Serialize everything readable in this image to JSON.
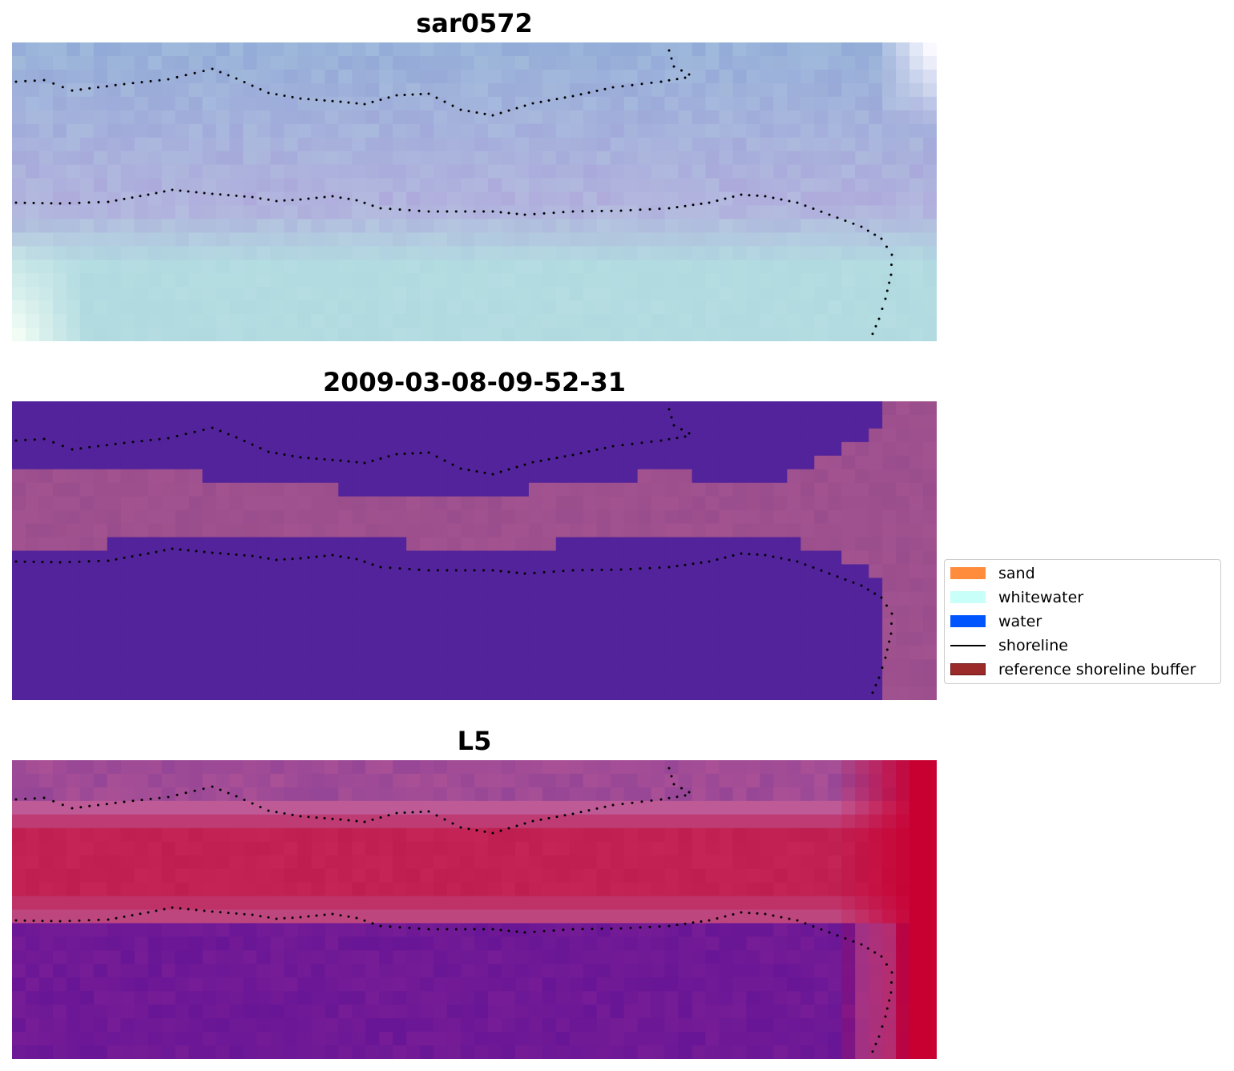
{
  "chart_data": {
    "type": "heatmap",
    "panels": [
      {
        "title": "sar0572",
        "colormap": "rgb-composite"
      },
      {
        "title": "2009-03-08-09-52-31",
        "colormap": "classification"
      },
      {
        "title": "L5",
        "colormap": "index"
      }
    ],
    "legend": {
      "placement": "center-right",
      "items": [
        {
          "label": "sand",
          "kind": "patch",
          "color": "#ff8c3c"
        },
        {
          "label": "whitewater",
          "kind": "patch",
          "color": "#c8fff8"
        },
        {
          "label": "water",
          "kind": "patch",
          "color": "#0055ff"
        },
        {
          "label": "shoreline",
          "kind": "line",
          "color": "#000000"
        },
        {
          "label": "reference shoreline buffer",
          "kind": "patch",
          "color": "#9b2a2a"
        }
      ]
    },
    "colors": {
      "water_class": "#52239a",
      "land_class": "#9a4d8c",
      "shoreline_dots": "#000000"
    },
    "grid": false,
    "axes_visible": false
  }
}
